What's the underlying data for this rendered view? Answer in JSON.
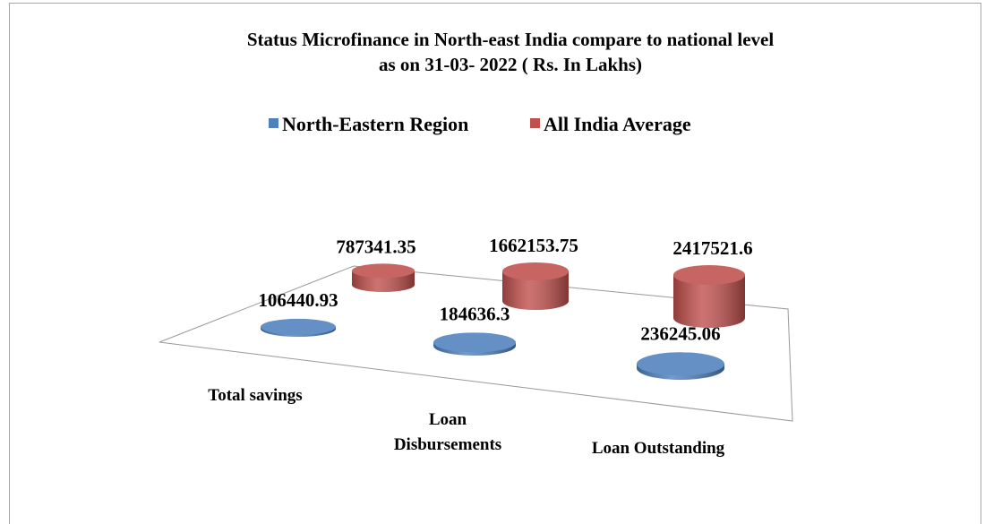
{
  "chart_data": {
    "type": "cylinder",
    "title": "Status Microfinance in North-east India compare to national level\nas on 31-03- 2022  ( Rs. In Lakhs)",
    "categories": [
      "Total savings",
      "Loan\nDisbursements",
      "Loan Outstanding"
    ],
    "series": [
      {
        "name": "North-Eastern Region",
        "color": "#4f81bd",
        "values": [
          106440.93,
          184636.3,
          236245.06
        ]
      },
      {
        "name": "All India Average",
        "color": "#c0504d",
        "values": [
          787341.35,
          1662153.75,
          2417521.6
        ]
      }
    ],
    "legend": "top"
  }
}
